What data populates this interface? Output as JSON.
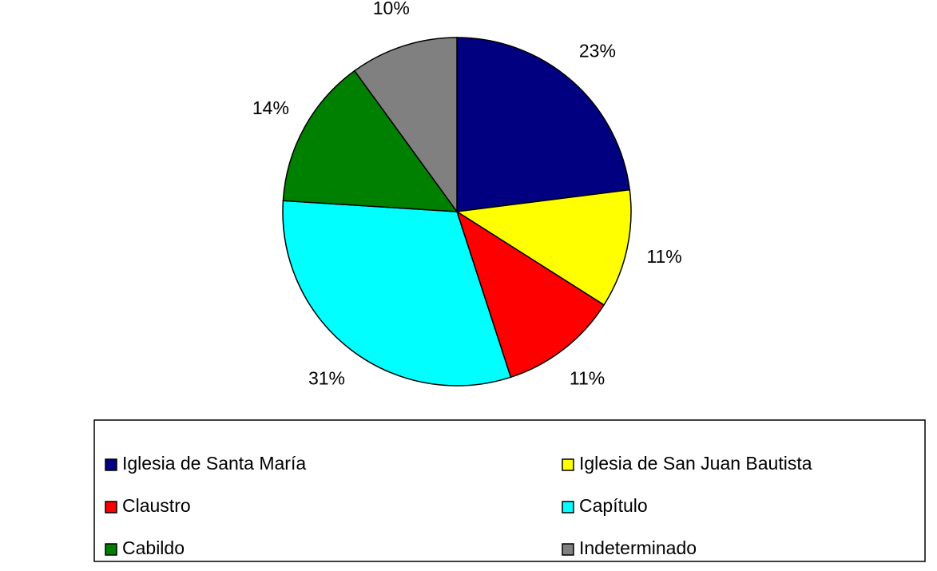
{
  "chart_data": {
    "type": "pie",
    "categories": [
      "Iglesia de Santa María",
      "Iglesia de San Juan Bautista",
      "Claustro",
      "Capítulo",
      "Cabildo",
      "Indeterminado"
    ],
    "values": [
      23,
      11,
      11,
      31,
      14,
      10
    ],
    "value_labels": [
      "23%",
      "11%",
      "11%",
      "31%",
      "14%",
      "10%"
    ],
    "colors": [
      "#000080",
      "#ffff00",
      "#ff0000",
      "#00ffff",
      "#008000",
      "#808080"
    ],
    "legend": "bottom"
  }
}
